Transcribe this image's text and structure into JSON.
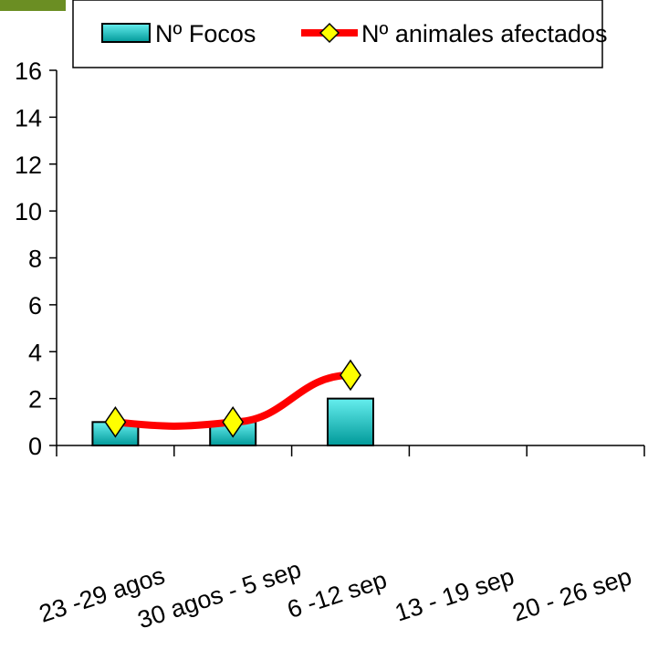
{
  "chart_data": {
    "type": "bar",
    "categories": [
      "23 -29 agos",
      "30 agos - 5 sep",
      "6 -12 sep",
      "13 - 19 sep",
      "20 - 26 sep"
    ],
    "series": [
      {
        "name": "Nº Focos",
        "type": "bar",
        "values": [
          1,
          1,
          2,
          null,
          null
        ],
        "color": "#33cccc"
      },
      {
        "name": "Nº animales afectados",
        "type": "line",
        "values": [
          1,
          1,
          3,
          null,
          null
        ],
        "color": "#ff0000",
        "marker_color": "#ffff00"
      }
    ],
    "ylim": [
      0,
      16
    ],
    "yticks": [
      0,
      2,
      4,
      6,
      8,
      10,
      12,
      14,
      16
    ],
    "legend_position": "top",
    "grid": false
  },
  "colors": {
    "accent_bar": "#6b8e23"
  }
}
